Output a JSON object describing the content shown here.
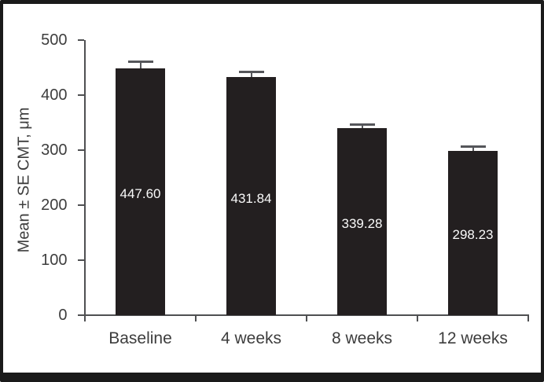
{
  "figure": {
    "description_visible_text_only": true
  },
  "chart_data": {
    "type": "bar",
    "categories": [
      "Baseline",
      "4 weeks",
      "8 weeks",
      "12 weeks"
    ],
    "values": [
      447.6,
      431.84,
      339.28,
      298.23
    ],
    "value_labels": [
      "447.60",
      "431.84",
      "339.28",
      "298.23"
    ],
    "errors_se_estimated": [
      13,
      10,
      7,
      8
    ],
    "title": "",
    "xlabel": "",
    "ylabel": "Mean ± SE CMT, μm",
    "ylim": [
      0,
      500
    ],
    "yticks": [
      0,
      100,
      200,
      300,
      400,
      500
    ],
    "grid": false,
    "legend": "none",
    "value_label_position": "inside-center",
    "error_bars": "upper-only"
  },
  "colors": {
    "bar": "#231f20",
    "axis": "#4f5052",
    "error_bar": "#55565a",
    "tick_text": "#3d3d3d",
    "value_text": "#fafafa",
    "frame": "#1a1a1a",
    "background": "#ffffff"
  }
}
